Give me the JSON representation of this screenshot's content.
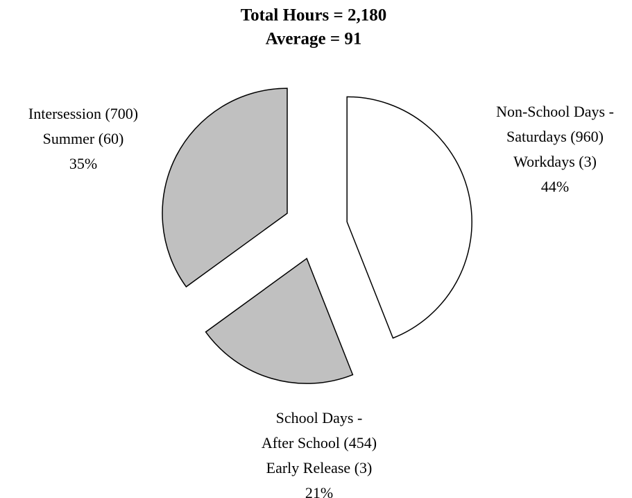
{
  "chart_data": {
    "type": "pie",
    "title": [
      "Total Hours = 2,180",
      "Average = 91"
    ],
    "categories": [
      [
        "Non-School Days -",
        "Saturdays (960)",
        "Workdays (3)"
      ],
      [
        "School Days -",
        "After School (454)",
        "Early Release (3)"
      ],
      [
        "Intersession (700)",
        "Summer (60)"
      ]
    ],
    "values": [
      44,
      21,
      35
    ],
    "value_labels": [
      "44%",
      "21%",
      "35%"
    ],
    "colors": [
      "#ffffff",
      "#c0c0c0",
      "#c0c0c0"
    ],
    "exploded": true
  }
}
